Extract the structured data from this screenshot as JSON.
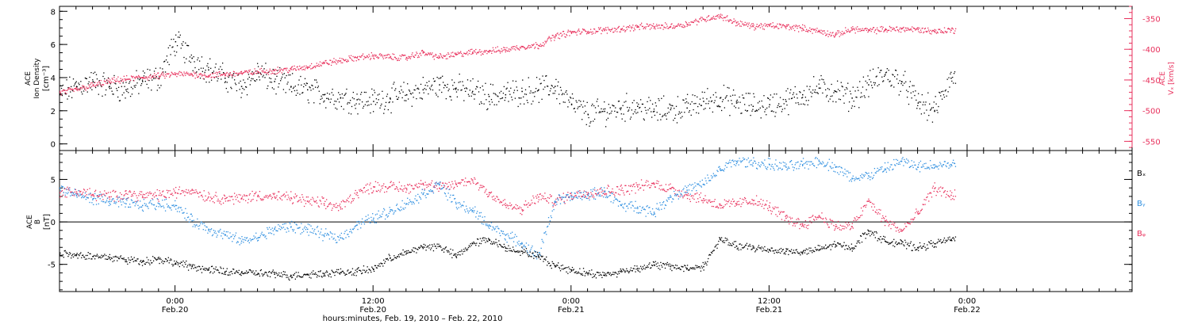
{
  "colors": {
    "black": "#000000",
    "pink": "#e8305c",
    "blue": "#2f8fe0",
    "axis": "#000000"
  },
  "x_axis": {
    "label": "hours:minutes, Feb. 19, 2010 – Feb. 22, 2010",
    "range_hours": [
      -7,
      58
    ],
    "ticks": [
      {
        "hour": 0,
        "time": "0:00",
        "date": "Feb.20"
      },
      {
        "hour": 12,
        "time": "12:00",
        "date": "Feb.20"
      },
      {
        "hour": 24,
        "time": "0:00",
        "date": "Feb.21"
      },
      {
        "hour": 36,
        "time": "12:00",
        "date": "Feb.21"
      },
      {
        "hour": 48,
        "time": "0:00",
        "date": "Feb.22"
      }
    ],
    "hour_zero": "Feb.20 0:00"
  },
  "chart_data": [
    {
      "type": "scatter",
      "title": "",
      "ylabel_lines": [
        "ACE",
        "Ion Density"
      ],
      "yunit": "[cm⁻³]",
      "ylim": [
        -0.4,
        8.3
      ],
      "yticks": [
        0,
        2,
        4,
        6,
        8
      ],
      "y2label_lines": [
        "ACE",
        "Vₓ [km/s]"
      ],
      "y2lim": [
        -565,
        -330
      ],
      "y2ticks": [
        -550,
        -500,
        -450,
        -400,
        -350
      ],
      "series": [
        {
          "axis": "left",
          "color_key": "black",
          "x": [
            -7,
            -6,
            -5,
            -4,
            -3,
            -2,
            -1,
            0,
            1,
            2,
            3,
            4,
            5,
            6,
            7,
            8,
            9,
            10,
            11,
            12,
            13,
            14,
            15,
            16,
            17,
            18,
            19,
            20,
            21,
            22,
            23,
            24,
            25,
            26,
            27,
            28,
            29,
            30,
            31,
            32,
            33,
            34,
            35,
            36,
            37,
            38,
            39,
            40,
            41,
            42,
            43,
            44,
            45,
            46,
            47
          ],
          "y": [
            3.0,
            3.5,
            3.8,
            3.5,
            3.3,
            3.8,
            4.0,
            6.2,
            5.2,
            4.5,
            4.0,
            3.5,
            4.3,
            3.8,
            3.5,
            3.3,
            3.0,
            2.8,
            2.7,
            2.6,
            2.8,
            3.0,
            3.3,
            3.6,
            3.4,
            3.2,
            2.9,
            3.0,
            3.2,
            3.3,
            3.5,
            2.4,
            1.8,
            2.0,
            2.2,
            2.3,
            2.0,
            2.1,
            2.2,
            2.6,
            2.8,
            2.5,
            2.3,
            2.4,
            2.6,
            3.0,
            3.4,
            3.2,
            2.8,
            3.6,
            4.2,
            3.8,
            2.5,
            2.0,
            4.0
          ]
        },
        {
          "axis": "right",
          "color_key": "pink",
          "x": [
            -7,
            -6,
            -5,
            -4,
            -3,
            -2,
            -1,
            0,
            1,
            2,
            3,
            4,
            5,
            6,
            7,
            8,
            9,
            10,
            11,
            12,
            13,
            14,
            15,
            16,
            17,
            18,
            19,
            20,
            21,
            22,
            23,
            24,
            25,
            26,
            27,
            28,
            29,
            30,
            31,
            32,
            33,
            34,
            35,
            36,
            37,
            38,
            39,
            40,
            41,
            42,
            43,
            44,
            45,
            46,
            47
          ],
          "y": [
            -470,
            -465,
            -458,
            -452,
            -448,
            -445,
            -443,
            -440,
            -440,
            -442,
            -440,
            -438,
            -436,
            -434,
            -432,
            -428,
            -422,
            -418,
            -413,
            -410,
            -412,
            -413,
            -405,
            -412,
            -408,
            -404,
            -402,
            -400,
            -395,
            -393,
            -378,
            -372,
            -370,
            -368,
            -366,
            -363,
            -362,
            -362,
            -358,
            -350,
            -345,
            -356,
            -362,
            -361,
            -362,
            -365,
            -370,
            -376,
            -366,
            -369,
            -367,
            -366,
            -367,
            -370,
            -368
          ]
        }
      ]
    },
    {
      "type": "scatter",
      "title": "",
      "ylabel_lines": [
        "ACE",
        "B"
      ],
      "yunit": "[nT]",
      "ylim": [
        -8.2,
        8.4
      ],
      "yticks": [
        -5,
        0,
        5
      ],
      "zero_line": true,
      "series": [
        {
          "name": "Bₓ",
          "color_key": "black",
          "x": [
            -7,
            -6,
            -5,
            -4,
            -3,
            -2,
            -1,
            0,
            1,
            2,
            3,
            4,
            5,
            6,
            7,
            8,
            9,
            10,
            11,
            12,
            13,
            14,
            15,
            16,
            17,
            18,
            19,
            20,
            21,
            22,
            23,
            24,
            25,
            26,
            27,
            28,
            29,
            30,
            31,
            32,
            33,
            34,
            35,
            36,
            37,
            38,
            39,
            40,
            41,
            42,
            43,
            44,
            45,
            46,
            47
          ],
          "y": [
            -3.6,
            -3.8,
            -4.0,
            -4.1,
            -4.4,
            -4.6,
            -4.3,
            -4.8,
            -5.2,
            -5.6,
            -5.8,
            -5.9,
            -6.0,
            -6.1,
            -6.3,
            -6.1,
            -6.0,
            -5.9,
            -5.8,
            -5.5,
            -4.2,
            -3.6,
            -2.9,
            -2.8,
            -4.0,
            -2.5,
            -2.0,
            -3.0,
            -3.4,
            -4.0,
            -5.1,
            -5.6,
            -6.0,
            -6.2,
            -5.8,
            -5.4,
            -5.0,
            -5.2,
            -5.4,
            -5.2,
            -2.0,
            -2.8,
            -3.0,
            -3.2,
            -3.4,
            -3.5,
            -3.2,
            -2.6,
            -3.0,
            -1.0,
            -2.2,
            -2.5,
            -3.0,
            -2.5,
            -2.0
          ]
        },
        {
          "name": "Bᵧ",
          "color_key": "blue",
          "x": [
            -7,
            -6,
            -5,
            -4,
            -3,
            -2,
            -1,
            0,
            1,
            2,
            3,
            4,
            5,
            6,
            7,
            8,
            9,
            10,
            11,
            12,
            13,
            14,
            15,
            16,
            17,
            18,
            19,
            20,
            21,
            22,
            23,
            24,
            25,
            26,
            27,
            28,
            29,
            30,
            31,
            32,
            33,
            34,
            35,
            36,
            37,
            38,
            39,
            40,
            41,
            42,
            43,
            44,
            45,
            46,
            47
          ],
          "y": [
            4.0,
            3.2,
            2.8,
            2.5,
            2.2,
            2.0,
            2.2,
            2.0,
            0.2,
            -0.8,
            -1.5,
            -2.2,
            -1.8,
            -0.8,
            -0.5,
            -0.8,
            -1.5,
            -1.8,
            -0.3,
            0.5,
            1.3,
            2.2,
            3.3,
            4.5,
            2.2,
            1.4,
            -0.3,
            -1.5,
            -2.5,
            -4.0,
            2.5,
            3.0,
            3.2,
            3.6,
            2.0,
            1.8,
            1.2,
            3.0,
            3.8,
            4.5,
            6.2,
            7.2,
            7.0,
            6.8,
            6.5,
            6.8,
            7.2,
            6.5,
            5.2,
            5.5,
            6.3,
            7.2,
            6.5,
            6.8,
            6.8
          ]
        },
        {
          "name": "Bᵩ",
          "color_key": "pink",
          "x": [
            -7,
            -6,
            -5,
            -4,
            -3,
            -2,
            -1,
            0,
            1,
            2,
            3,
            4,
            5,
            6,
            7,
            8,
            9,
            10,
            11,
            12,
            13,
            14,
            15,
            16,
            17,
            18,
            19,
            20,
            21,
            22,
            23,
            24,
            25,
            26,
            27,
            28,
            29,
            30,
            31,
            32,
            33,
            34,
            35,
            36,
            37,
            38,
            39,
            40,
            41,
            42,
            43,
            44,
            45,
            46,
            47
          ],
          "y": [
            3.5,
            3.6,
            3.3,
            3.0,
            3.4,
            3.1,
            3.2,
            3.5,
            3.8,
            3.0,
            2.8,
            2.8,
            3.2,
            3.0,
            2.9,
            2.5,
            2.2,
            1.8,
            3.5,
            4.2,
            4.2,
            4.0,
            4.6,
            4.0,
            4.5,
            5.0,
            3.5,
            2.0,
            1.5,
            3.0,
            2.5,
            3.2,
            3.5,
            3.7,
            3.8,
            4.2,
            4.5,
            4.0,
            3.2,
            2.8,
            2.0,
            2.2,
            2.6,
            1.8,
            0.5,
            -0.3,
            0.8,
            -0.5,
            -0.5,
            2.5,
            0.2,
            -1.0,
            1.0,
            4.0,
            3.2
          ]
        }
      ],
      "legend": [
        "Bₓ",
        "Bᵧ",
        "Bᵩ"
      ],
      "legend_placement": "right"
    }
  ]
}
